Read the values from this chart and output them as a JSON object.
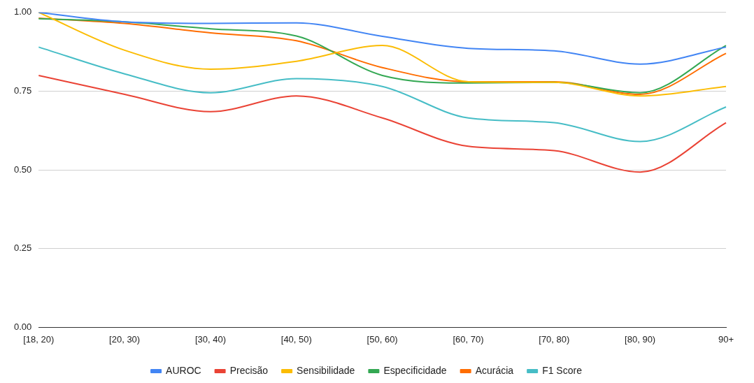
{
  "chart_data": {
    "type": "line",
    "categories": [
      "[18, 20)",
      "[20, 30)",
      "[30, 40)",
      "[40, 50)",
      "[50, 60)",
      "[60, 70)",
      "[70, 80)",
      "[80, 90)",
      "90+"
    ],
    "series": [
      {
        "name": "AUROC",
        "color": "#4285f4",
        "values": [
          1.0,
          0.97,
          0.965,
          0.967,
          0.924,
          0.886,
          0.878,
          0.836,
          0.89
        ]
      },
      {
        "name": "Precisão",
        "color": "#ea4335",
        "values": [
          0.8,
          0.74,
          0.685,
          0.735,
          0.665,
          0.575,
          0.561,
          0.493,
          0.65
        ]
      },
      {
        "name": "Sensibilidade",
        "color": "#fbbc04",
        "values": [
          1.0,
          0.88,
          0.82,
          0.845,
          0.895,
          0.78,
          0.778,
          0.735,
          0.765
        ]
      },
      {
        "name": "Especificidade",
        "color": "#34a853",
        "values": [
          0.98,
          0.97,
          0.948,
          0.925,
          0.8,
          0.776,
          0.778,
          0.745,
          0.895
        ]
      },
      {
        "name": "Acurácia",
        "color": "#ff6d01",
        "values": [
          0.982,
          0.965,
          0.935,
          0.91,
          0.825,
          0.78,
          0.78,
          0.74,
          0.87
        ]
      },
      {
        "name": "F1 Score",
        "color": "#46bdc6",
        "values": [
          0.89,
          0.805,
          0.745,
          0.79,
          0.765,
          0.665,
          0.65,
          0.59,
          0.7
        ]
      }
    ],
    "ylim": [
      0,
      1
    ],
    "yticks": [
      {
        "value": 0,
        "label": "0.00"
      },
      {
        "value": 0.25,
        "label": "0.25"
      },
      {
        "value": 0.5,
        "label": "0.50"
      },
      {
        "value": 0.75,
        "label": "0.75"
      },
      {
        "value": 1,
        "label": "1.00"
      }
    ],
    "grid": "y",
    "legend": "bottom",
    "marker": "none",
    "line_style": "solid"
  }
}
